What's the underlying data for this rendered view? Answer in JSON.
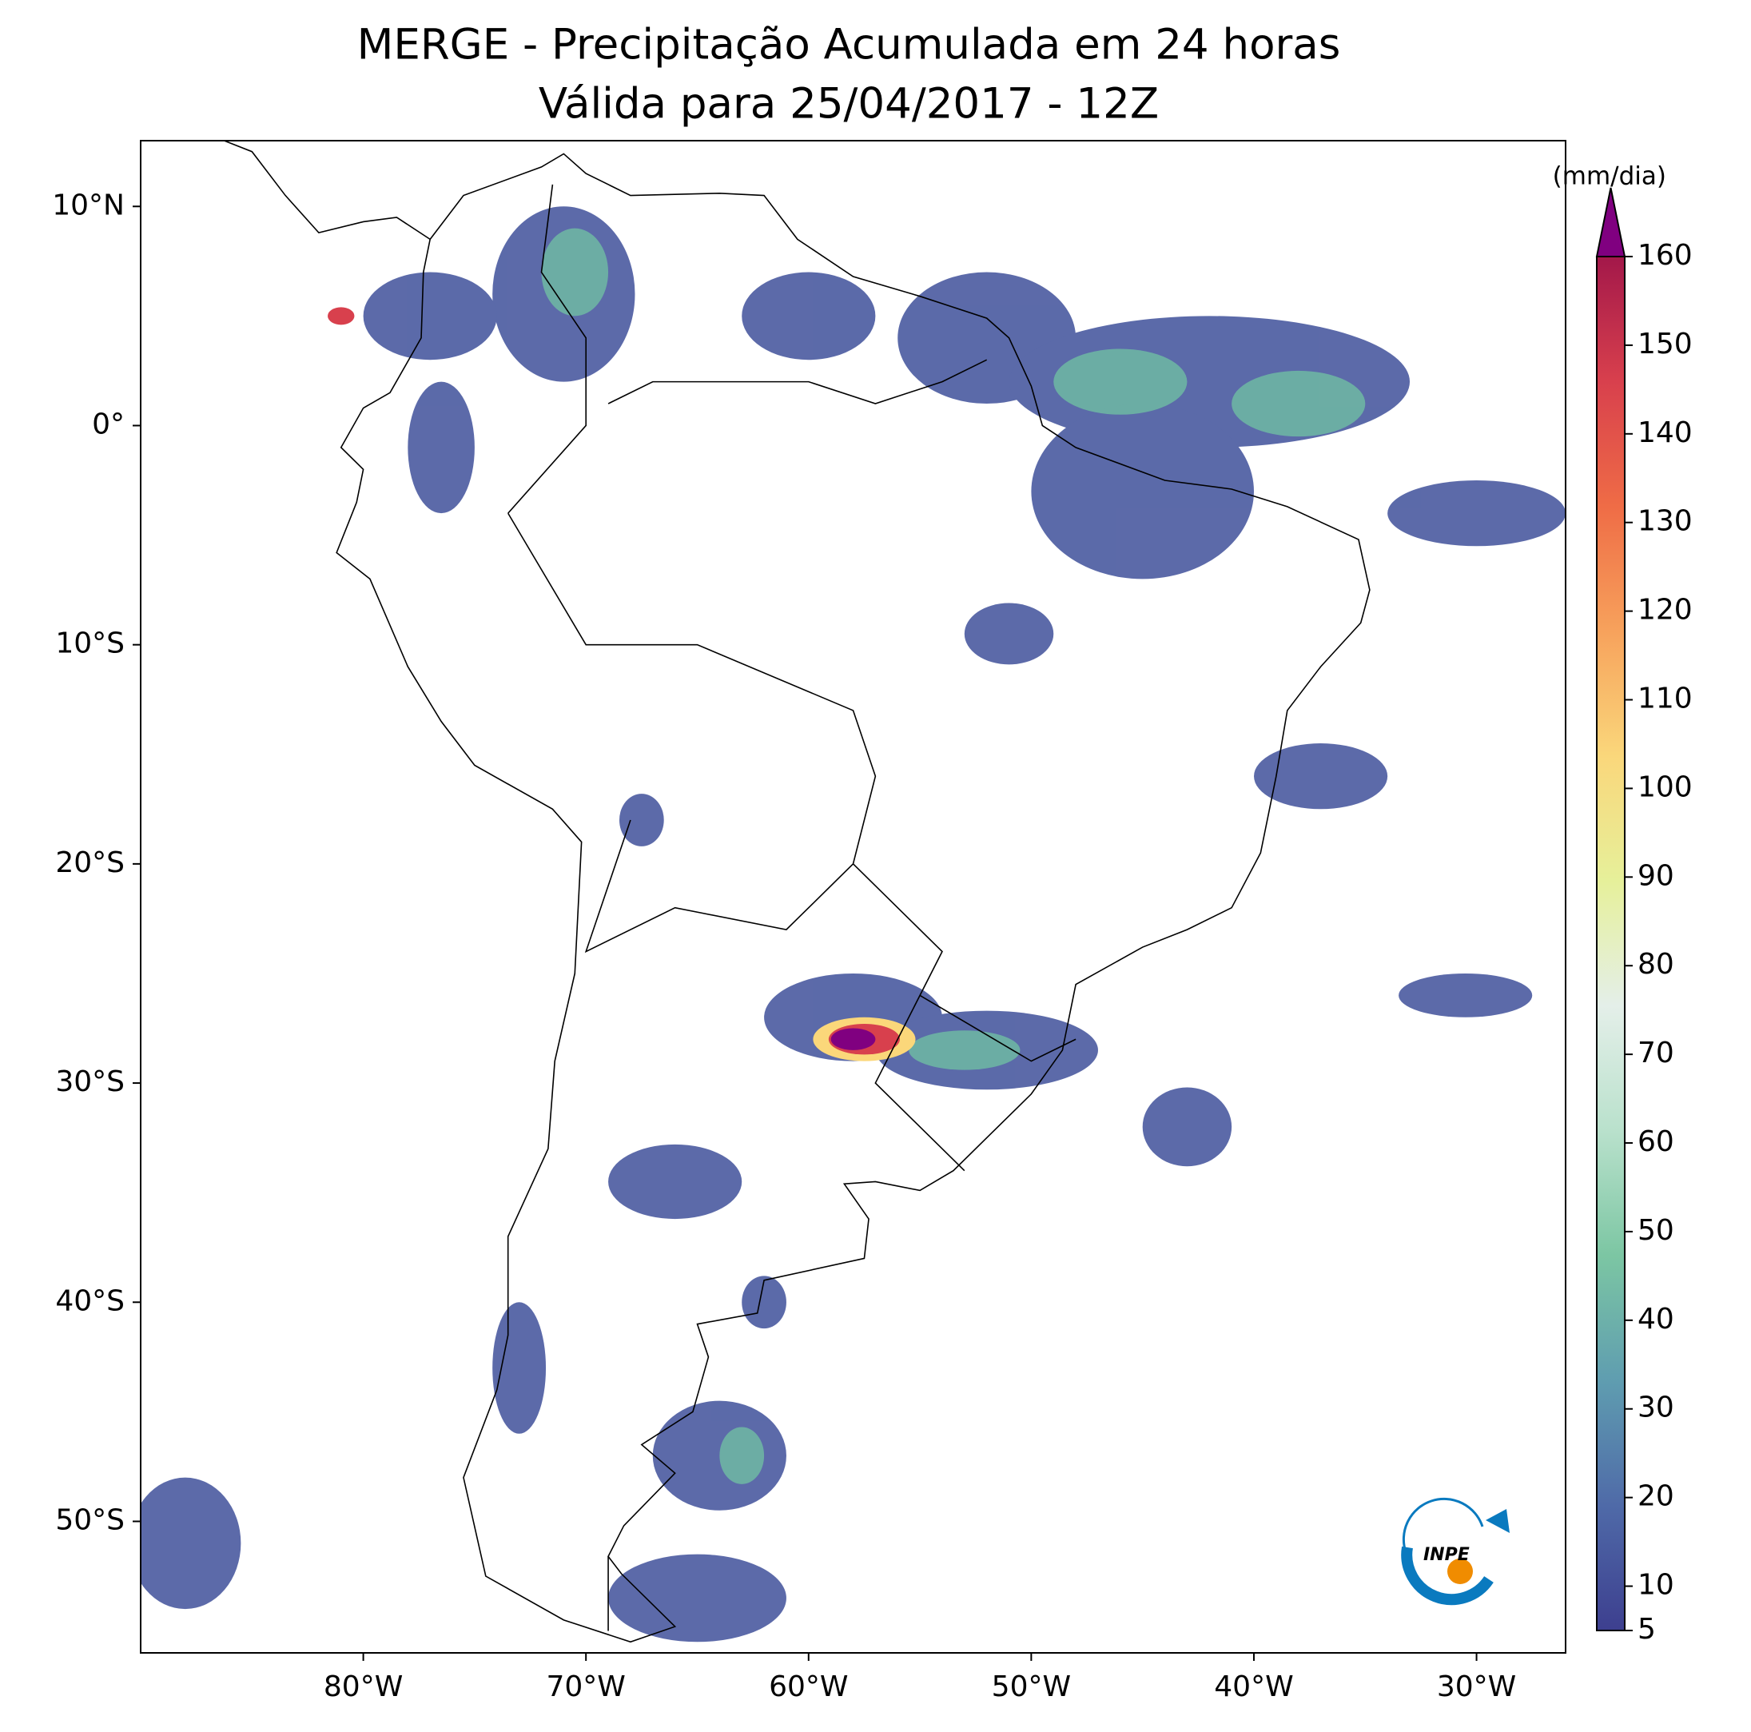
{
  "title": [
    "MERGE - Precipitação Acumulada em 24 horas",
    "Válida para 25/04/2017 - 12Z"
  ],
  "map": {
    "xlim": [
      -90,
      -26
    ],
    "ylim": [
      -56,
      13
    ],
    "xticks": [
      {
        "value": -80,
        "label": "80°W"
      },
      {
        "value": -70,
        "label": "70°W"
      },
      {
        "value": -60,
        "label": "60°W"
      },
      {
        "value": -50,
        "label": "50°W"
      },
      {
        "value": -40,
        "label": "40°W"
      },
      {
        "value": -30,
        "label": "30°W"
      }
    ],
    "yticks": [
      {
        "value": 10,
        "label": "10°N"
      },
      {
        "value": 0,
        "label": "0°"
      },
      {
        "value": -10,
        "label": "10°S"
      },
      {
        "value": -20,
        "label": "20°S"
      },
      {
        "value": -30,
        "label": "30°S"
      },
      {
        "value": -40,
        "label": "40°S"
      },
      {
        "value": -50,
        "label": "50°S"
      }
    ]
  },
  "colorbar": {
    "label": "(mm/dia)",
    "ticks": [
      5,
      10,
      20,
      30,
      40,
      50,
      60,
      70,
      80,
      90,
      100,
      110,
      120,
      130,
      140,
      150,
      160
    ],
    "colors": [
      "#3d3f8f",
      "#4f6aa8",
      "#5f9db0",
      "#7cc6a3",
      "#b9e1cc",
      "#e4efe9",
      "#e6f09a",
      "#fad77b",
      "#f7a25c",
      "#ef6c46",
      "#d8404d",
      "#a3184a"
    ],
    "extend_color": "#800080"
  },
  "logo_text": "INPE"
}
